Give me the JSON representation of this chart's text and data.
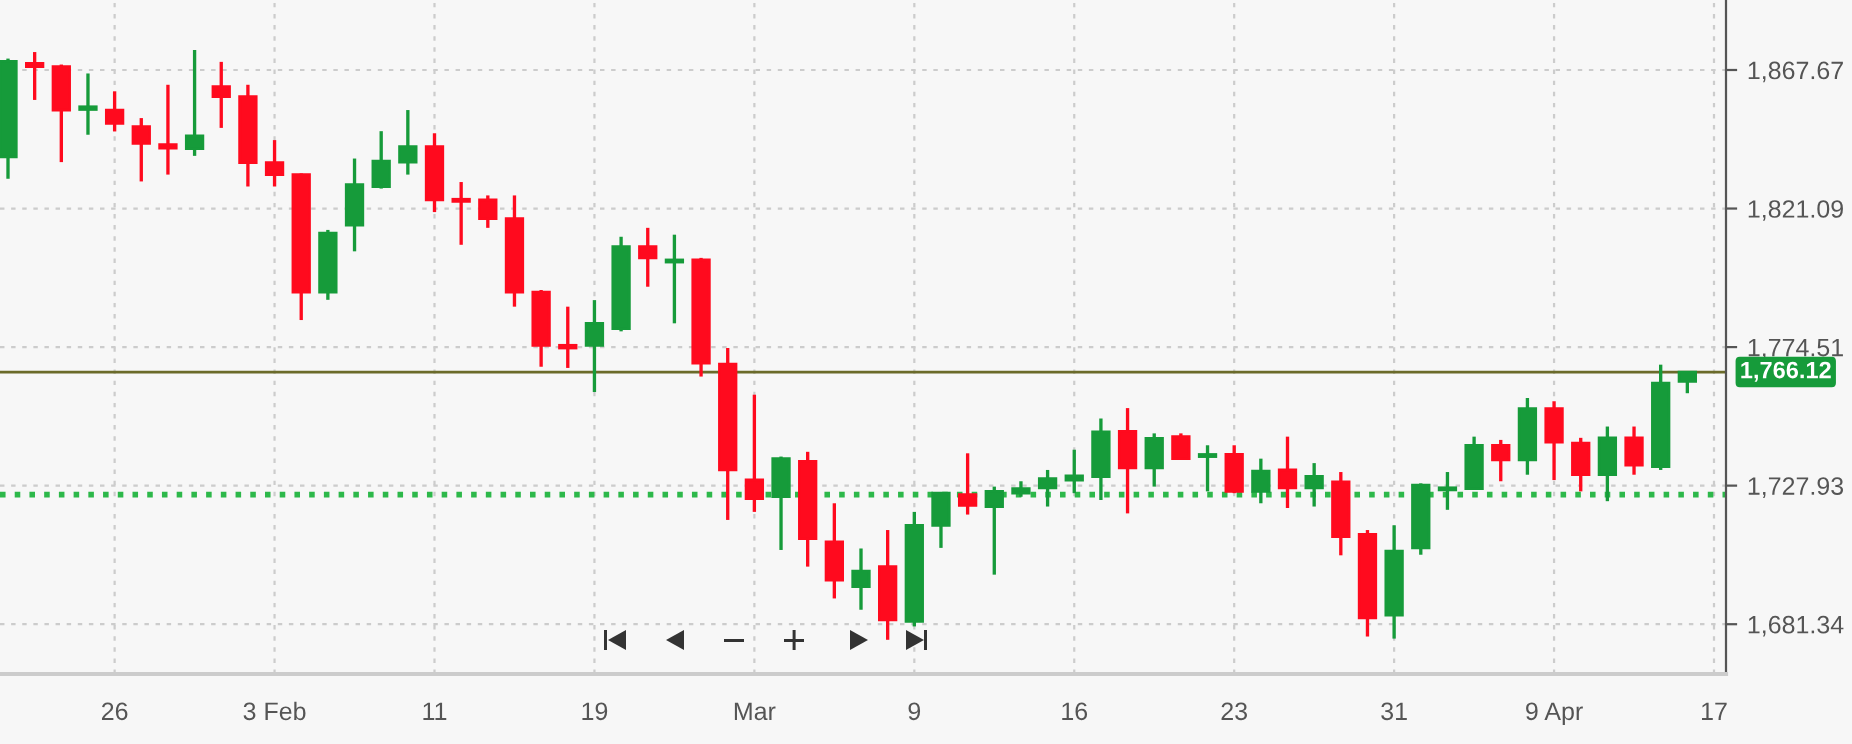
{
  "chart_data": {
    "type": "candlestick",
    "categories": [
      null,
      null,
      null,
      null,
      "26",
      null,
      null,
      null,
      null,
      null,
      "3 Feb",
      null,
      null,
      null,
      null,
      null,
      "11",
      null,
      null,
      null,
      null,
      null,
      "19",
      null,
      null,
      null,
      null,
      null,
      "Mar",
      null,
      null,
      null,
      null,
      null,
      "9",
      null,
      null,
      null,
      null,
      null,
      "16",
      null,
      null,
      null,
      null,
      null,
      "23",
      null,
      null,
      null,
      null,
      null,
      "31",
      null,
      null,
      null,
      null,
      null,
      "9 Apr",
      null,
      null,
      null,
      null,
      null,
      "17"
    ],
    "ohlc": [
      [
        1838.5,
        1871.5,
        1831.1,
        1870.6
      ],
      [
        1869.9,
        1873.7,
        1857.6,
        1868.8
      ],
      [
        1868.8,
        1869.5,
        1836.7,
        1854.2
      ],
      [
        1854.4,
        1866.5,
        1845.9,
        1855.3
      ],
      [
        1854.2,
        1860.5,
        1847.0,
        1849.7
      ],
      [
        1848.6,
        1851.5,
        1830.2,
        1843.0
      ],
      [
        1842.6,
        1862.7,
        1832.5,
        1841.4
      ],
      [
        1841.2,
        1874.4,
        1838.8,
        1845.5
      ],
      [
        1862.1,
        1870.4,
        1848.2,
        1858.7
      ],
      [
        1858.7,
        1862.7,
        1828.5,
        1836.5
      ],
      [
        1836.5,
        1844.1,
        1828.5,
        1832.5
      ],
      [
        1832.5,
        1832.9,
        1783.6,
        1793.0
      ],
      [
        1793.0,
        1813.9,
        1790.4,
        1812.8
      ],
      [
        1815.5,
        1837.9,
        1806.7,
        1829.1
      ],
      [
        1828.5,
        1847.1,
        1827.8,
        1837.0
      ],
      [
        1836.7,
        1854.2,
        1832.5,
        1841.9
      ],
      [
        1841.9,
        1846.4,
        1819.9,
        1824.0
      ],
      [
        1824.2,
        1830.0,
        1808.9,
        1823.5
      ],
      [
        1824.0,
        1825.5,
        1814.6,
        1817.7
      ],
      [
        1817.7,
        1825.5,
        1788.1,
        1793.0
      ],
      [
        1793.0,
        1793.7,
        1767.9,
        1775.1
      ],
      [
        1775.1,
        1788.1,
        1767.5,
        1774.2
      ],
      [
        1775.1,
        1790.3,
        1759.4,
        1782.5
      ],
      [
        1780.7,
        1811.6,
        1779.8,
        1808.3
      ],
      [
        1808.3,
        1814.6,
        1794.8,
        1804.5
      ],
      [
        1803.1,
        1812.3,
        1782.5,
        1803.8
      ],
      [
        1803.8,
        1804.5,
        1764.6,
        1769.1
      ],
      [
        1768.8,
        1774.2,
        1716.4,
        1733.2
      ],
      [
        1729.9,
        1758.5,
        1719.1,
        1723.6
      ],
      [
        1724.2,
        1737.7,
        1706.3,
        1737.0
      ],
      [
        1736.1,
        1739.3,
        1700.7,
        1710.1
      ],
      [
        1709.0,
        1722.0,
        1690.0,
        1696.2
      ],
      [
        1694.0,
        1706.8,
        1686.2,
        1699.2
      ],
      [
        1700.7,
        1713.0,
        1676.1,
        1682.8
      ],
      [
        1682.3,
        1719.1,
        1680.6,
        1714.6
      ],
      [
        1714.6,
        1725.4,
        1707.0,
        1725.4
      ],
      [
        1724.9,
        1738.8,
        1718.2,
        1721.3
      ],
      [
        1720.9,
        1727.6,
        1698.0,
        1726.0
      ],
      [
        1725.4,
        1729.4,
        1724.2,
        1726.9
      ],
      [
        1727.2,
        1733.2,
        1720.9,
        1730.3
      ],
      [
        1729.8,
        1740.0,
        1725.4,
        1731.2
      ],
      [
        1731.0,
        1750.5,
        1723.1,
        1746.0
      ],
      [
        1746.2,
        1754.0,
        1718.6,
        1733.9
      ],
      [
        1733.9,
        1745.5,
        1727.6,
        1743.8
      ],
      [
        1744.4,
        1745.5,
        1736.6,
        1737.0
      ],
      [
        1737.7,
        1741.5,
        1726.0,
        1738.4
      ],
      [
        1738.4,
        1741.5,
        1725.4,
        1726.0
      ],
      [
        1726.0,
        1737.0,
        1722.0,
        1732.8
      ],
      [
        1733.2,
        1744.4,
        1720.4,
        1727.2
      ],
      [
        1727.2,
        1735.5,
        1720.9,
        1731.0
      ],
      [
        1729.2,
        1732.5,
        1704.5,
        1710.8
      ],
      [
        1711.5,
        1713.0,
        1677.2,
        1683.5
      ],
      [
        1684.4,
        1714.6,
        1676.5,
        1705.9
      ],
      [
        1707.0,
        1728.7,
        1704.7,
        1728.1
      ],
      [
        1726.5,
        1732.5,
        1719.8,
        1727.2
      ],
      [
        1726.9,
        1744.4,
        1726.5,
        1741.5
      ],
      [
        1741.5,
        1743.3,
        1729.4,
        1736.6
      ],
      [
        1736.6,
        1757.4,
        1731.6,
        1753.8
      ],
      [
        1753.8,
        1756.3,
        1729.8,
        1742.6
      ],
      [
        1742.2,
        1744.0,
        1726.0,
        1731.6
      ],
      [
        1731.6,
        1747.8,
        1722.7,
        1744.0
      ],
      [
        1744.0,
        1747.8,
        1731.6,
        1734.8
      ],
      [
        1734.3,
        1768.6,
        1733.2,
        1762.4
      ],
      [
        1763.0,
        1766.3,
        1759.0,
        1766.12
      ],
      null
    ],
    "colors": [
      "#169b3a",
      "#ff0a1e",
      "#ff0a1e",
      "#169b3a",
      "#ff0a1e",
      "#ff0a1e",
      "#ff0a1e",
      "#169b3a",
      "#ff0a1e",
      "#ff0a1e",
      "#ff0a1e",
      "#ff0a1e",
      "#169b3a",
      "#169b3a",
      "#169b3a",
      "#169b3a",
      "#ff0a1e",
      "#ff0a1e",
      "#ff0a1e",
      "#ff0a1e",
      "#ff0a1e",
      "#ff0a1e",
      "#169b3a",
      "#169b3a",
      "#ff0a1e",
      "#169b3a",
      "#ff0a1e",
      "#ff0a1e",
      "#ff0a1e",
      "#169b3a",
      "#ff0a1e",
      "#ff0a1e",
      "#169b3a",
      "#ff0a1e",
      "#169b3a",
      "#169b3a",
      "#ff0a1e",
      "#169b3a",
      "#169b3a",
      "#169b3a",
      "#169b3a",
      "#169b3a",
      "#ff0a1e",
      "#169b3a",
      "#ff0a1e",
      "#169b3a",
      "#ff0a1e",
      "#169b3a",
      "#ff0a1e",
      "#169b3a",
      "#ff0a1e",
      "#ff0a1e",
      "#169b3a",
      "#169b3a",
      "#169b3a",
      "#169b3a",
      "#ff0a1e",
      "#169b3a",
      "#ff0a1e",
      "#ff0a1e",
      "#169b3a",
      "#ff0a1e",
      "#169b3a",
      "#169b3a",
      null
    ],
    "ylim": [
      1664.6,
      1891.2
    ],
    "yticks": [
      {
        "value": 1681.34,
        "label": "1,681.34"
      },
      {
        "value": 1727.93,
        "label": "1,727.93"
      },
      {
        "value": 1774.51,
        "label": "1,774.51"
      },
      {
        "value": 1821.09,
        "label": "1,821.09"
      },
      {
        "value": 1867.67,
        "label": "1,867.67"
      }
    ],
    "grid": true,
    "ref_lines": [
      {
        "axis": "y",
        "value": 1766.12,
        "label": "1,766.12",
        "color": "#6b6b2a",
        "line_style": "solid"
      },
      {
        "axis": "y",
        "value": 1724.9,
        "color": "#2db84a",
        "line_style": "dotted"
      }
    ]
  }
}
